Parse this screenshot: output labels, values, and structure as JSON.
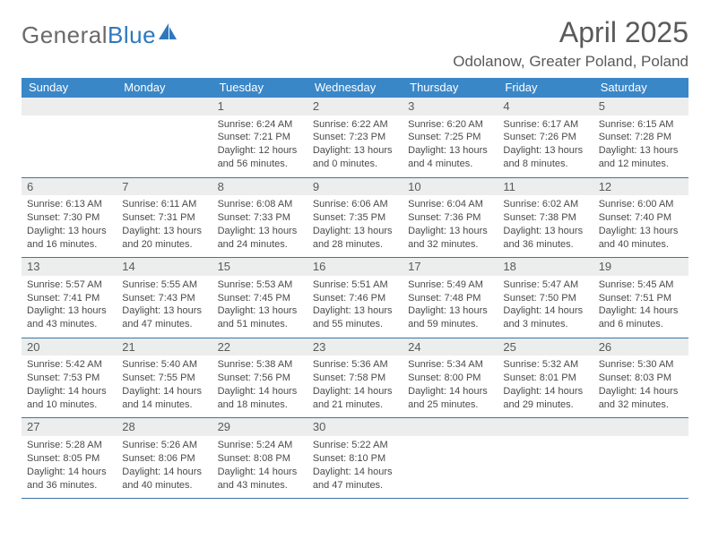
{
  "brand": {
    "part1": "General",
    "part2": "Blue"
  },
  "title": "April 2025",
  "subtitle": "Odolanow, Greater Poland, Poland",
  "colors": {
    "header_bg": "#3a87c8",
    "rule": "#3a76a8",
    "daynum_bg": "#eceded",
    "logo_gray": "#6a6a6a",
    "logo_blue": "#2f78bd"
  },
  "day_headers": [
    "Sunday",
    "Monday",
    "Tuesday",
    "Wednesday",
    "Thursday",
    "Friday",
    "Saturday"
  ],
  "weeks": [
    [
      {
        "day": "",
        "sunrise": "",
        "sunset": "",
        "daylight": ""
      },
      {
        "day": "",
        "sunrise": "",
        "sunset": "",
        "daylight": ""
      },
      {
        "day": "1",
        "sunrise": "Sunrise: 6:24 AM",
        "sunset": "Sunset: 7:21 PM",
        "daylight": "Daylight: 12 hours and 56 minutes."
      },
      {
        "day": "2",
        "sunrise": "Sunrise: 6:22 AM",
        "sunset": "Sunset: 7:23 PM",
        "daylight": "Daylight: 13 hours and 0 minutes."
      },
      {
        "day": "3",
        "sunrise": "Sunrise: 6:20 AM",
        "sunset": "Sunset: 7:25 PM",
        "daylight": "Daylight: 13 hours and 4 minutes."
      },
      {
        "day": "4",
        "sunrise": "Sunrise: 6:17 AM",
        "sunset": "Sunset: 7:26 PM",
        "daylight": "Daylight: 13 hours and 8 minutes."
      },
      {
        "day": "5",
        "sunrise": "Sunrise: 6:15 AM",
        "sunset": "Sunset: 7:28 PM",
        "daylight": "Daylight: 13 hours and 12 minutes."
      }
    ],
    [
      {
        "day": "6",
        "sunrise": "Sunrise: 6:13 AM",
        "sunset": "Sunset: 7:30 PM",
        "daylight": "Daylight: 13 hours and 16 minutes."
      },
      {
        "day": "7",
        "sunrise": "Sunrise: 6:11 AM",
        "sunset": "Sunset: 7:31 PM",
        "daylight": "Daylight: 13 hours and 20 minutes."
      },
      {
        "day": "8",
        "sunrise": "Sunrise: 6:08 AM",
        "sunset": "Sunset: 7:33 PM",
        "daylight": "Daylight: 13 hours and 24 minutes."
      },
      {
        "day": "9",
        "sunrise": "Sunrise: 6:06 AM",
        "sunset": "Sunset: 7:35 PM",
        "daylight": "Daylight: 13 hours and 28 minutes."
      },
      {
        "day": "10",
        "sunrise": "Sunrise: 6:04 AM",
        "sunset": "Sunset: 7:36 PM",
        "daylight": "Daylight: 13 hours and 32 minutes."
      },
      {
        "day": "11",
        "sunrise": "Sunrise: 6:02 AM",
        "sunset": "Sunset: 7:38 PM",
        "daylight": "Daylight: 13 hours and 36 minutes."
      },
      {
        "day": "12",
        "sunrise": "Sunrise: 6:00 AM",
        "sunset": "Sunset: 7:40 PM",
        "daylight": "Daylight: 13 hours and 40 minutes."
      }
    ],
    [
      {
        "day": "13",
        "sunrise": "Sunrise: 5:57 AM",
        "sunset": "Sunset: 7:41 PM",
        "daylight": "Daylight: 13 hours and 43 minutes."
      },
      {
        "day": "14",
        "sunrise": "Sunrise: 5:55 AM",
        "sunset": "Sunset: 7:43 PM",
        "daylight": "Daylight: 13 hours and 47 minutes."
      },
      {
        "day": "15",
        "sunrise": "Sunrise: 5:53 AM",
        "sunset": "Sunset: 7:45 PM",
        "daylight": "Daylight: 13 hours and 51 minutes."
      },
      {
        "day": "16",
        "sunrise": "Sunrise: 5:51 AM",
        "sunset": "Sunset: 7:46 PM",
        "daylight": "Daylight: 13 hours and 55 minutes."
      },
      {
        "day": "17",
        "sunrise": "Sunrise: 5:49 AM",
        "sunset": "Sunset: 7:48 PM",
        "daylight": "Daylight: 13 hours and 59 minutes."
      },
      {
        "day": "18",
        "sunrise": "Sunrise: 5:47 AM",
        "sunset": "Sunset: 7:50 PM",
        "daylight": "Daylight: 14 hours and 3 minutes."
      },
      {
        "day": "19",
        "sunrise": "Sunrise: 5:45 AM",
        "sunset": "Sunset: 7:51 PM",
        "daylight": "Daylight: 14 hours and 6 minutes."
      }
    ],
    [
      {
        "day": "20",
        "sunrise": "Sunrise: 5:42 AM",
        "sunset": "Sunset: 7:53 PM",
        "daylight": "Daylight: 14 hours and 10 minutes."
      },
      {
        "day": "21",
        "sunrise": "Sunrise: 5:40 AM",
        "sunset": "Sunset: 7:55 PM",
        "daylight": "Daylight: 14 hours and 14 minutes."
      },
      {
        "day": "22",
        "sunrise": "Sunrise: 5:38 AM",
        "sunset": "Sunset: 7:56 PM",
        "daylight": "Daylight: 14 hours and 18 minutes."
      },
      {
        "day": "23",
        "sunrise": "Sunrise: 5:36 AM",
        "sunset": "Sunset: 7:58 PM",
        "daylight": "Daylight: 14 hours and 21 minutes."
      },
      {
        "day": "24",
        "sunrise": "Sunrise: 5:34 AM",
        "sunset": "Sunset: 8:00 PM",
        "daylight": "Daylight: 14 hours and 25 minutes."
      },
      {
        "day": "25",
        "sunrise": "Sunrise: 5:32 AM",
        "sunset": "Sunset: 8:01 PM",
        "daylight": "Daylight: 14 hours and 29 minutes."
      },
      {
        "day": "26",
        "sunrise": "Sunrise: 5:30 AM",
        "sunset": "Sunset: 8:03 PM",
        "daylight": "Daylight: 14 hours and 32 minutes."
      }
    ],
    [
      {
        "day": "27",
        "sunrise": "Sunrise: 5:28 AM",
        "sunset": "Sunset: 8:05 PM",
        "daylight": "Daylight: 14 hours and 36 minutes."
      },
      {
        "day": "28",
        "sunrise": "Sunrise: 5:26 AM",
        "sunset": "Sunset: 8:06 PM",
        "daylight": "Daylight: 14 hours and 40 minutes."
      },
      {
        "day": "29",
        "sunrise": "Sunrise: 5:24 AM",
        "sunset": "Sunset: 8:08 PM",
        "daylight": "Daylight: 14 hours and 43 minutes."
      },
      {
        "day": "30",
        "sunrise": "Sunrise: 5:22 AM",
        "sunset": "Sunset: 8:10 PM",
        "daylight": "Daylight: 14 hours and 47 minutes."
      },
      {
        "day": "",
        "sunrise": "",
        "sunset": "",
        "daylight": ""
      },
      {
        "day": "",
        "sunrise": "",
        "sunset": "",
        "daylight": ""
      },
      {
        "day": "",
        "sunrise": "",
        "sunset": "",
        "daylight": ""
      }
    ]
  ]
}
